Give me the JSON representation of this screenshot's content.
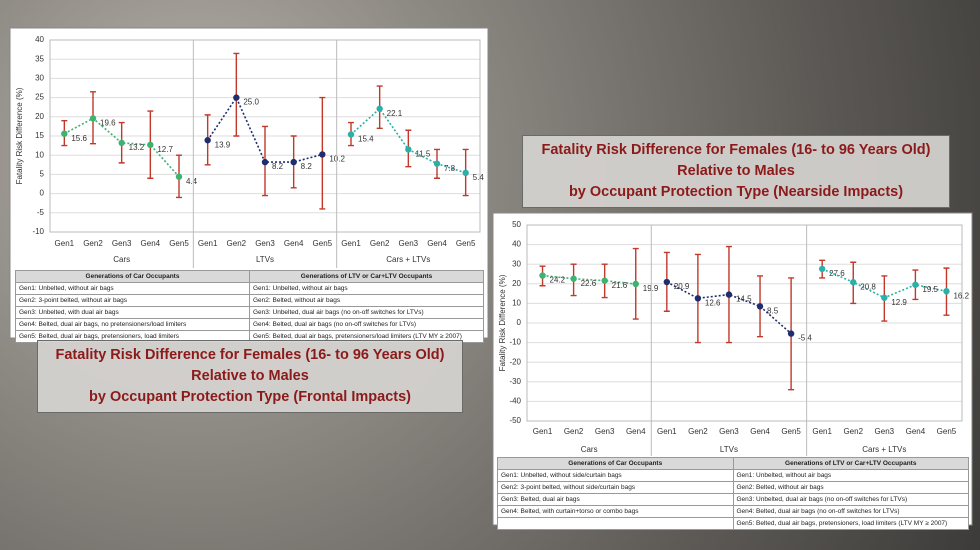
{
  "chart_data": [
    {
      "type": "line",
      "title": [
        "Fatality Risk Difference for Females (16- to 96 Years Old)",
        "Relative to Males",
        "by Occupant Protection Type (Frontal Impacts)"
      ],
      "y_label": "Fatality Risk Difference (%)",
      "ylim": [
        -10,
        40
      ],
      "yticks": [
        -10,
        -5,
        0,
        5,
        10,
        15,
        20,
        25,
        30,
        35,
        40
      ],
      "grid": true,
      "error_color": "#c0392b",
      "series": [
        {
          "name": "Cars",
          "color": "#3cb371",
          "categories": [
            "Gen1",
            "Gen2",
            "Gen3",
            "Gen4",
            "Gen5"
          ],
          "values": [
            15.6,
            19.6,
            13.2,
            12.7,
            4.4
          ],
          "value_labels": [
            "15.6",
            "19.6",
            "13.2",
            "12.7",
            "4.4"
          ],
          "lower": [
            12.5,
            13,
            8,
            4,
            -1
          ],
          "upper": [
            19,
            26.5,
            18.5,
            21.5,
            10
          ]
        },
        {
          "name": "LTVs",
          "color": "#1f2d6e",
          "categories": [
            "Gen1",
            "Gen2",
            "Gen3",
            "Gen4",
            "Gen5"
          ],
          "values": [
            13.9,
            25.0,
            8.2,
            8.2,
            10.2
          ],
          "value_labels": [
            "13.9",
            "25.0",
            "8.2",
            "8.2",
            "10.2"
          ],
          "lower": [
            7.5,
            15,
            -0.5,
            1.5,
            -4
          ],
          "upper": [
            20.5,
            36.5,
            17.5,
            15,
            25
          ]
        },
        {
          "name": "Cars + LTVs",
          "color": "#2ab0a8",
          "categories": [
            "Gen1",
            "Gen2",
            "Gen3",
            "Gen4",
            "Gen5"
          ],
          "values": [
            15.4,
            22.1,
            11.5,
            7.8,
            5.4
          ],
          "value_labels": [
            "15.4",
            "22.1",
            "11.5",
            "7.8",
            "5.4"
          ],
          "lower": [
            12.5,
            17,
            7,
            4,
            -0.5
          ],
          "upper": [
            18.5,
            28,
            16.5,
            11.5,
            11.5
          ]
        }
      ],
      "table": {
        "headers": [
          "Generations of Car Occupants",
          "Generations of LTV or Car+LTV Occupants"
        ],
        "rows": [
          [
            "Gen1: Unbelted, without air bags",
            "Gen1: Unbelted, without air bags"
          ],
          [
            "Gen2: 3-point belted, without air bags",
            "Gen2: Belted, without air bags"
          ],
          [
            "Gen3: Unbelted, with dual air bags",
            "Gen3: Unbelted, dual air bags (no on-off switches for LTVs)"
          ],
          [
            "Gen4: Belted, dual air bags, no pretensioners/load limiters",
            "Gen4: Belted, dual air bags (no on-off switches for LTVs)"
          ],
          [
            "Gen5: Belted, dual air bags, pretensioners, load limiters",
            "Gen5: Belted, dual air bags, pretensioners/load limiters (LTV MY ≥ 2007)"
          ]
        ]
      }
    },
    {
      "type": "line",
      "title": [
        "Fatality Risk Difference for Females (16- to 96 Years Old)",
        "Relative to Males",
        "by Occupant Protection Type (Nearside Impacts)"
      ],
      "y_label": "Fatality Risk Difference (%)",
      "ylim": [
        -50,
        50
      ],
      "yticks": [
        -50,
        -40,
        -30,
        -20,
        -10,
        0,
        10,
        20,
        30,
        40,
        50
      ],
      "grid": true,
      "error_color": "#c0392b",
      "series": [
        {
          "name": "Cars",
          "color": "#3cb371",
          "categories": [
            "Gen1",
            "Gen2",
            "Gen3",
            "Gen4"
          ],
          "values": [
            24.2,
            22.6,
            21.6,
            19.9
          ],
          "value_labels": [
            "24.2",
            "22.6",
            "21.6",
            "19.9"
          ],
          "lower": [
            19,
            14,
            13,
            2
          ],
          "upper": [
            29,
            30,
            30,
            38
          ]
        },
        {
          "name": "LTVs",
          "color": "#1f2d6e",
          "categories": [
            "Gen1",
            "Gen2",
            "Gen3",
            "Gen4",
            "Gen5"
          ],
          "values": [
            20.9,
            12.6,
            14.5,
            8.5,
            -5.4
          ],
          "value_labels": [
            "20.9",
            "12.6",
            "14.5",
            "8.5",
            "-5.4"
          ],
          "lower": [
            6,
            -10,
            -10,
            -7,
            -34
          ],
          "upper": [
            36,
            35,
            39,
            24,
            23
          ]
        },
        {
          "name": "Cars + LTVs",
          "color": "#2ab0a8",
          "categories": [
            "Gen1",
            "Gen2",
            "Gen3",
            "Gen4",
            "Gen5"
          ],
          "values": [
            27.6,
            20.8,
            12.9,
            19.5,
            16.2
          ],
          "value_labels": [
            "27.6",
            "20.8",
            "12.9",
            "19.5",
            "16.2"
          ],
          "lower": [
            23,
            10,
            1,
            12,
            4
          ],
          "upper": [
            32,
            31,
            24,
            27,
            28
          ]
        }
      ],
      "table": {
        "headers": [
          "Generations of Car Occupants",
          "Generations of LTV or Car+LTV Occupants"
        ],
        "rows": [
          [
            "Gen1: Unbelted, without side/curtain bags",
            "Gen1: Unbelted, without air bags"
          ],
          [
            "Gen2: 3-point belted, without side/curtain bags",
            "Gen2: Belted, without air bags"
          ],
          [
            "Gen3: Belted, dual air bags",
            "Gen3: Unbelted, dual air bags (no on-off switches for LTVs)"
          ],
          [
            "Gen4: Belted, with curtain+torso or combo bags",
            "Gen4: Belted, dual air bags (no on-off switches for LTVs)"
          ],
          [
            null,
            "Gen5: Belted, dual air bags, pretensioners, load limiters (LTV MY ≥ 2007)"
          ]
        ]
      }
    }
  ]
}
